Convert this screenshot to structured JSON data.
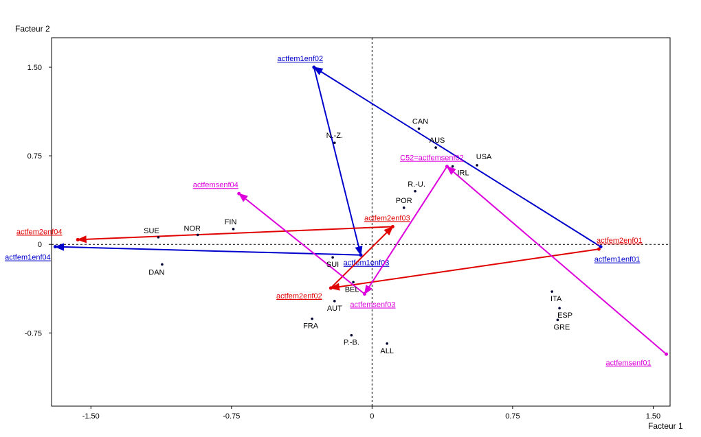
{
  "chart_data": {
    "type": "scatter",
    "xlabel": "Facteur 1",
    "ylabel": "Facteur 2",
    "xlim": [
      -1.71,
      1.59
    ],
    "ylim": [
      -1.37,
      1.75
    ],
    "x_ticks": [
      {
        "value": -1.5,
        "label": "-1.50"
      },
      {
        "value": -0.75,
        "label": "-0.75"
      },
      {
        "value": 0,
        "label": "0"
      },
      {
        "value": 0.75,
        "label": "0.75"
      },
      {
        "value": 1.5,
        "label": "1.50"
      }
    ],
    "y_ticks": [
      {
        "value": 1.5,
        "label": "1.50"
      },
      {
        "value": 0.75,
        "label": "0.75"
      },
      {
        "value": 0,
        "label": "0"
      },
      {
        "value": -0.75,
        "label": "-0.75"
      }
    ],
    "reference_lines": {
      "x": 0,
      "y": 0,
      "style": "dashed"
    },
    "points": [
      {
        "label": "CAN",
        "x": 0.25,
        "y": 0.98
      },
      {
        "label": "AUS",
        "x": 0.34,
        "y": 0.82
      },
      {
        "label": "USA",
        "x": 0.56,
        "y": 0.67
      },
      {
        "label": "IRL",
        "x": 0.43,
        "y": 0.66
      },
      {
        "label": "N.-Z.",
        "x": -0.2,
        "y": 0.86
      },
      {
        "label": "R.-U.",
        "x": 0.23,
        "y": 0.45
      },
      {
        "label": "POR",
        "x": 0.17,
        "y": 0.31
      },
      {
        "label": "FIN",
        "x": -0.74,
        "y": 0.13
      },
      {
        "label": "NOR",
        "x": -0.93,
        "y": 0.08
      },
      {
        "label": "SUE",
        "x": -1.14,
        "y": 0.06
      },
      {
        "label": "DAN",
        "x": -1.12,
        "y": -0.17
      },
      {
        "label": "SUI",
        "x": -0.21,
        "y": -0.11
      },
      {
        "label": "BEL",
        "x": -0.1,
        "y": -0.32
      },
      {
        "label": "AUT",
        "x": -0.2,
        "y": -0.48
      },
      {
        "label": "FRA",
        "x": -0.32,
        "y": -0.63
      },
      {
        "label": "P.-B.",
        "x": -0.11,
        "y": -0.77
      },
      {
        "label": "ALL",
        "x": 0.08,
        "y": -0.84
      },
      {
        "label": "ITA",
        "x": 0.96,
        "y": -0.4
      },
      {
        "label": "ESP",
        "x": 1.0,
        "y": -0.54
      },
      {
        "label": "GRE",
        "x": 0.99,
        "y": -0.64
      }
    ],
    "series": [
      {
        "name": "actfem1enf",
        "color": "#0000cc",
        "points": [
          {
            "label": "actfem1enf01",
            "x": 1.22,
            "y": -0.02
          },
          {
            "label": "actfem1enf02",
            "x": -0.31,
            "y": 1.5
          },
          {
            "label": "actfem1enf03",
            "x": -0.06,
            "y": -0.09
          },
          {
            "label": "actfem1enf04",
            "x": -1.69,
            "y": -0.02
          }
        ]
      },
      {
        "name": "actfem2enf",
        "color": "#e00000",
        "points": [
          {
            "label": "actfem2enf01",
            "x": 1.21,
            "y": -0.04
          },
          {
            "label": "actfem2enf02",
            "x": -0.22,
            "y": -0.37
          },
          {
            "label": "actfem2enf03",
            "x": 0.11,
            "y": 0.15
          },
          {
            "label": "actfem2enf04",
            "x": -1.57,
            "y": 0.04
          }
        ]
      },
      {
        "name": "actfemsenf",
        "color": "#dd00dd",
        "points": [
          {
            "label": "actfemsenf01",
            "x": 1.57,
            "y": -0.93
          },
          {
            "label": "C52=actfemsenf02",
            "x": 0.4,
            "y": 0.66
          },
          {
            "label": "actfemsenf03",
            "x": -0.04,
            "y": -0.42
          },
          {
            "label": "actfemsenf04",
            "x": -0.71,
            "y": 0.43
          }
        ]
      }
    ]
  }
}
